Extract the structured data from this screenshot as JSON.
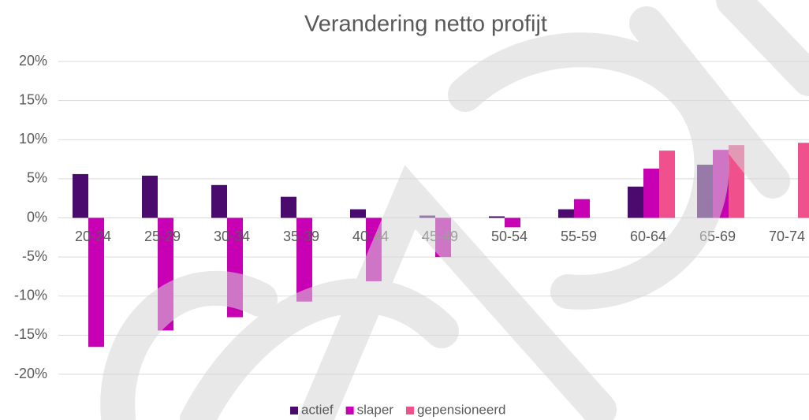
{
  "chart_data": {
    "type": "bar",
    "title": "Verandering netto profijt",
    "categories": [
      "20-24",
      "25-29",
      "30-34",
      "35-39",
      "40-44",
      "45-49",
      "50-54",
      "55-59",
      "60-64",
      "65-69",
      "70-74"
    ],
    "series": [
      {
        "name": "actief",
        "color": "#4b0a6e",
        "values": [
          5.6,
          5.4,
          4.2,
          2.7,
          1.1,
          0.3,
          0.2,
          1.1,
          4.0,
          6.8,
          null
        ]
      },
      {
        "name": "slaper",
        "color": "#c800b4",
        "values": [
          -16.5,
          -14.4,
          -12.7,
          -10.7,
          -8.1,
          -5.0,
          -1.2,
          2.4,
          6.3,
          8.7,
          null
        ]
      },
      {
        "name": "gepensioneerd",
        "color": "#f0508c",
        "values": [
          null,
          null,
          null,
          null,
          null,
          null,
          null,
          null,
          8.6,
          9.3,
          9.6
        ]
      }
    ],
    "ylim": [
      -20,
      20
    ],
    "yticks": [
      {
        "value": 20,
        "label": "20%"
      },
      {
        "value": 15,
        "label": "15%"
      },
      {
        "value": 10,
        "label": "10%"
      },
      {
        "value": 5,
        "label": "5%"
      },
      {
        "value": 0,
        "label": "0%"
      },
      {
        "value": -5,
        "label": "-5%"
      },
      {
        "value": -10,
        "label": "-10%"
      },
      {
        "value": -15,
        "label": "-15%"
      },
      {
        "value": -20,
        "label": "-20%"
      }
    ],
    "grid": true,
    "legend": "bottom"
  }
}
